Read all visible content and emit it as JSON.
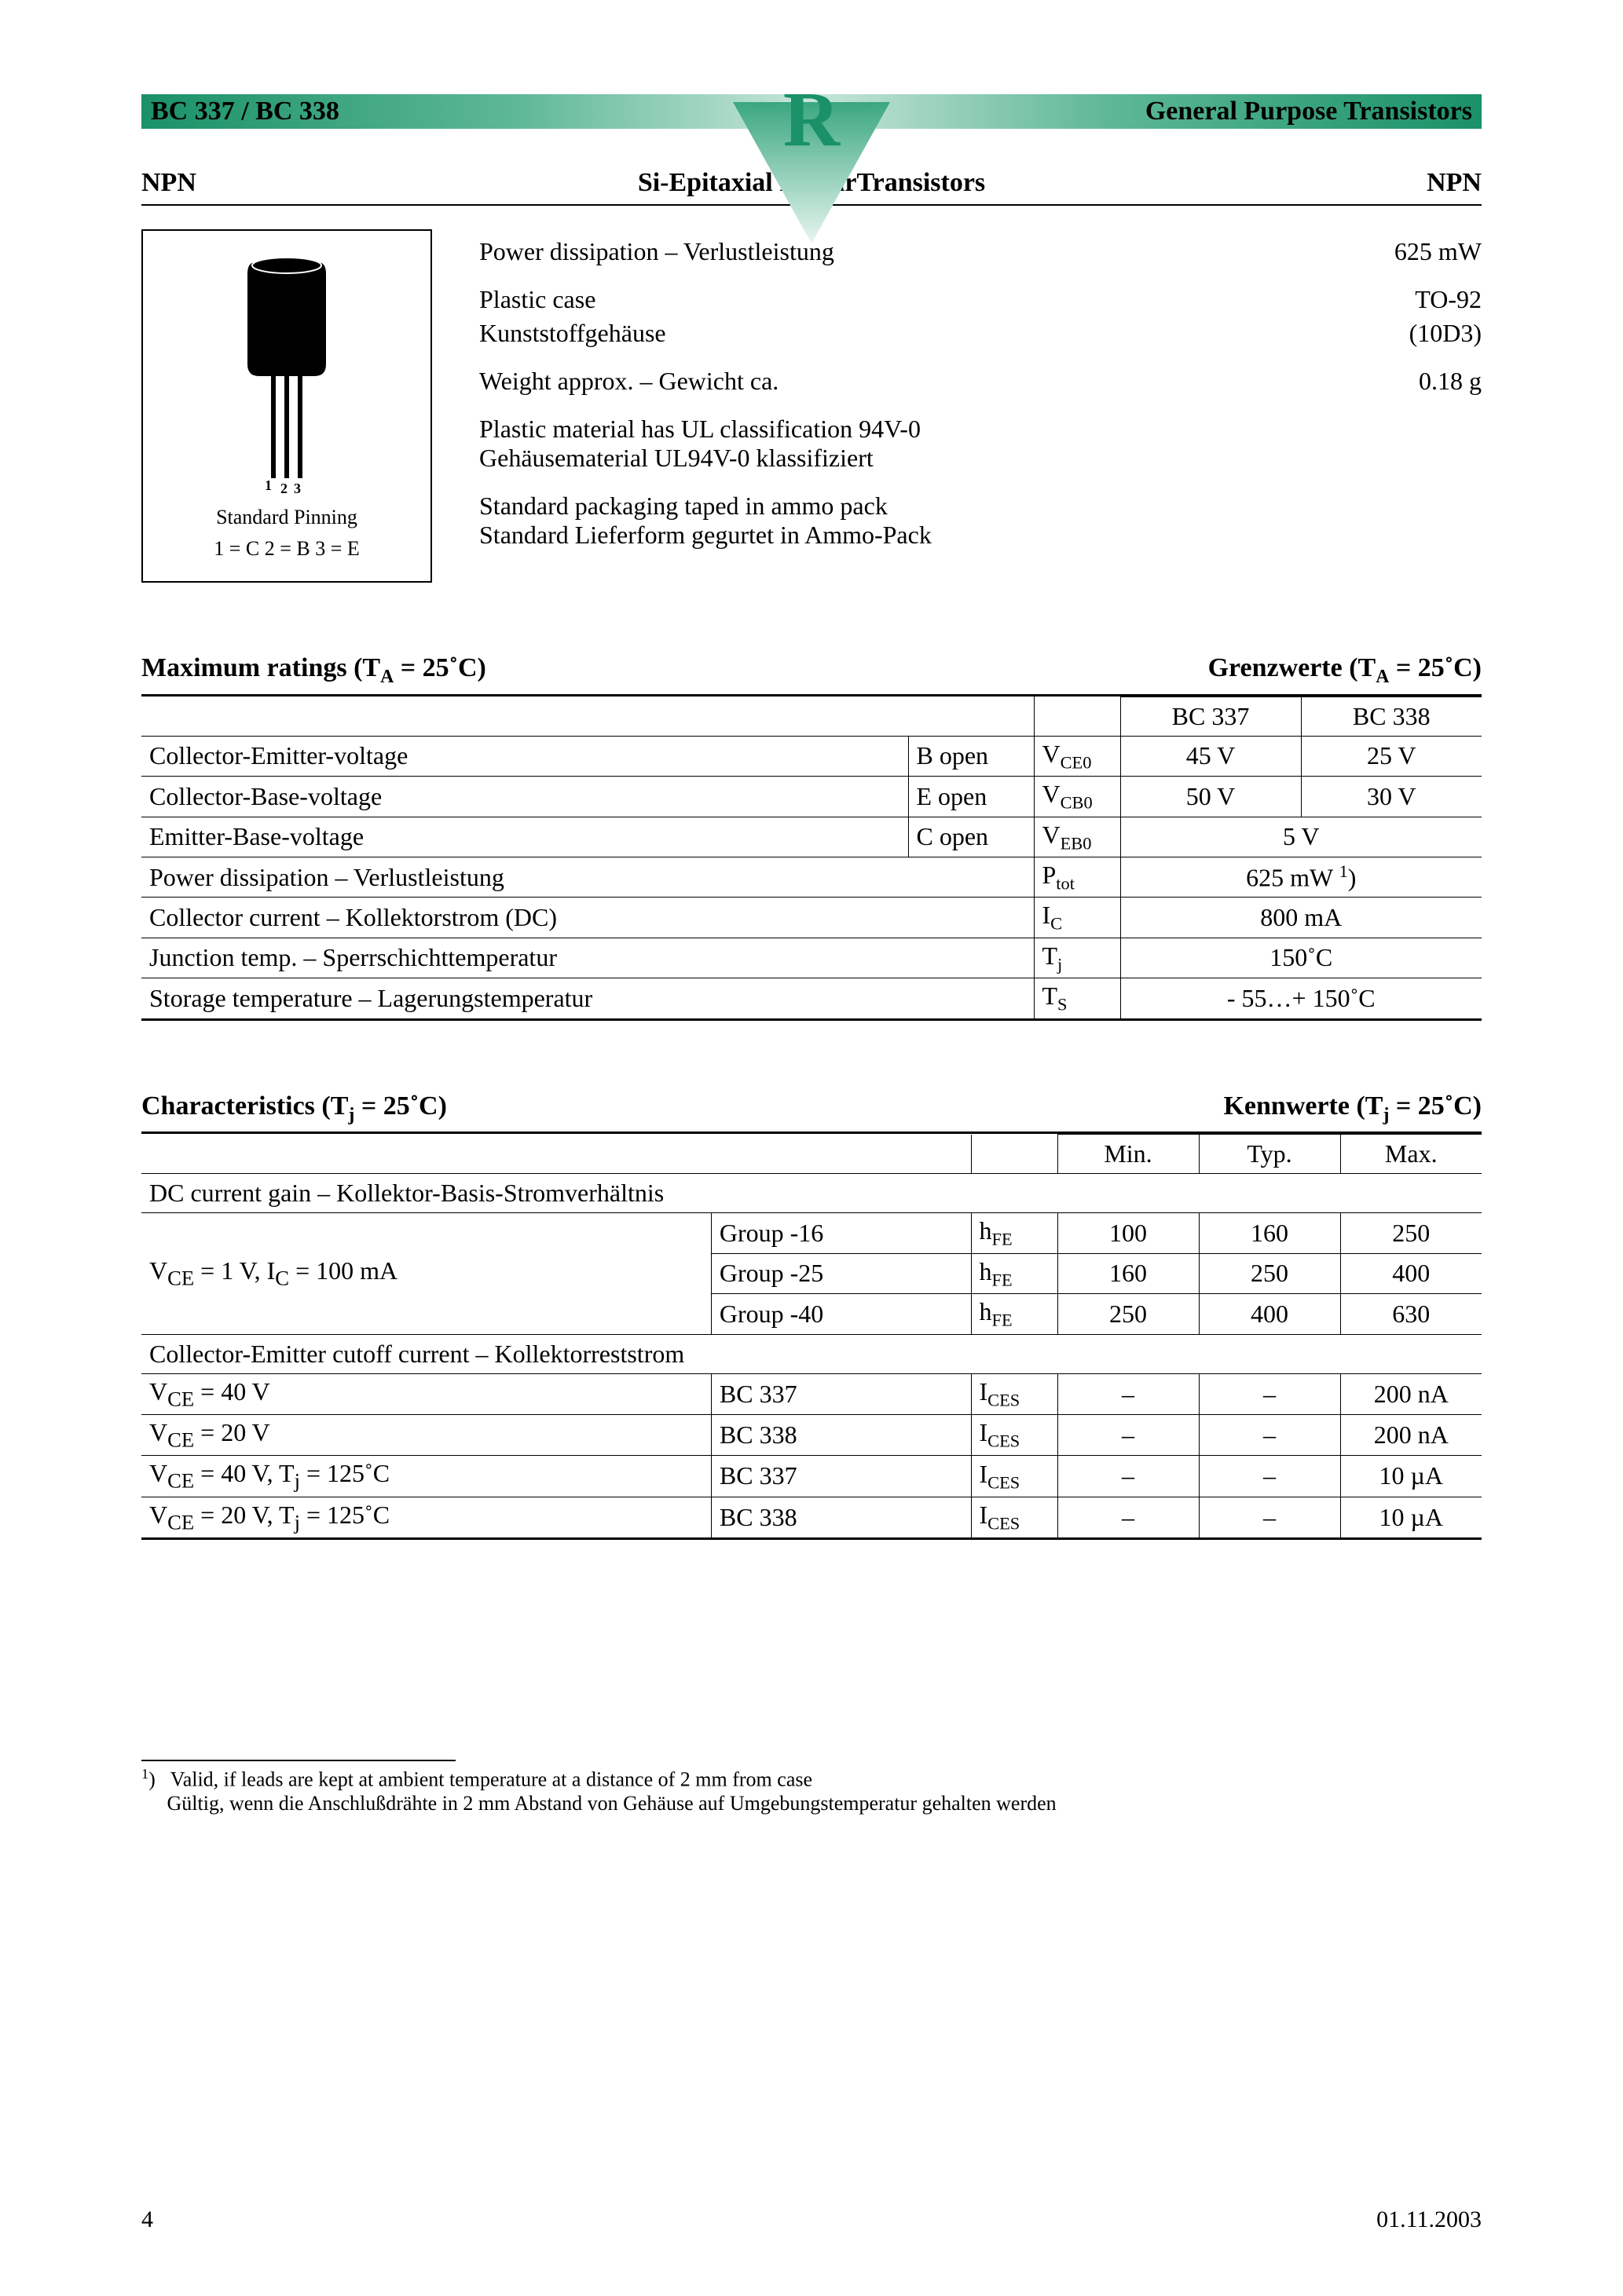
{
  "header": {
    "part_left": "BC 337 / BC 338",
    "part_right": "General Purpose Transistors",
    "logo_letter": "R",
    "logo_color": "#1a9168",
    "triangle_gradient_top": "#3aa77f",
    "triangle_gradient_bottom": "#d8efe6"
  },
  "subhead": {
    "left": "NPN",
    "center": "Si-Epitaxial PlanarTransistors",
    "right": "NPN"
  },
  "package": {
    "caption1": "Standard Pinning",
    "caption2": "1 = C   2 = B   3 = E",
    "pin_labels": [
      "1",
      "2",
      "3"
    ]
  },
  "specs": {
    "pd_label": "Power dissipation – Verlustleistung",
    "pd_val": "625 mW",
    "case_en": "Plastic case",
    "case_val": "TO-92",
    "case_de": "Kunststoffgehäuse",
    "case_code": "(10D3)",
    "weight_label": "Weight approx. – Gewicht ca.",
    "weight_val": "0.18 g",
    "ul_en": "Plastic material has UL classification 94V-0",
    "ul_de": "Gehäusematerial UL94V-0 klassifiziert",
    "pack_en": "Standard packaging taped in ammo pack",
    "pack_de": "Standard Lieferform gegurtet in Ammo-Pack"
  },
  "max_ratings": {
    "title_left": "Maximum ratings (T",
    "title_left_sub": "A",
    "title_left_end": " = 25˚C)",
    "title_right": "Grenzwerte (T",
    "title_right_sub": "A",
    "title_right_end": " = 25˚C)",
    "headers": [
      "BC 337",
      "BC 338"
    ],
    "rows": [
      {
        "p": "Collector-Emitter-voltage",
        "c": "B open",
        "s": "V",
        "ss": "CE0",
        "v": [
          "45 V",
          "25 V"
        ]
      },
      {
        "p": "Collector-Base-voltage",
        "c": "E open",
        "s": "V",
        "ss": "CB0",
        "v": [
          "50 V",
          "30 V"
        ]
      },
      {
        "p": "Emitter-Base-voltage",
        "c": "C open",
        "s": "V",
        "ss": "EB0",
        "merged": "5 V"
      },
      {
        "p": "Power dissipation – Verlustleistung",
        "c": "",
        "s": "P",
        "ss": "tot",
        "merged": "625 mW ",
        "note": "1",
        ")": ")"
      },
      {
        "p": "Collector current – Kollektorstrom (DC)",
        "c": "",
        "s": "I",
        "ss": "C",
        "merged": "800 mA"
      },
      {
        "p": "Junction temp. – Sperrschichttemperatur",
        "c": "",
        "s": "T",
        "ss": "j",
        "merged": "150˚C"
      },
      {
        "p": "Storage temperature – Lagerungstemperatur",
        "c": "",
        "s": "T",
        "ss": "S",
        "merged": "- 55…+ 150˚C"
      }
    ]
  },
  "characteristics": {
    "title_left": "Characteristics (T",
    "title_left_sub": "j",
    "title_left_end": " = 25˚C)",
    "title_right": "Kennwerte (T",
    "title_right_sub": "j",
    "title_right_end": " = 25˚C)",
    "headers": [
      "Min.",
      "Typ.",
      "Max."
    ],
    "section1": {
      "head": "DC current gain – Kollektor-Basis-Stromverhältnis",
      "cond_html": "V<sub>CE</sub> = 1 V, I<sub>C</sub> = 100 mA",
      "rows": [
        {
          "g": "Group -16",
          "s": "h",
          "ss": "FE",
          "min": "100",
          "typ": "160",
          "max": "250"
        },
        {
          "g": "Group -25",
          "s": "h",
          "ss": "FE",
          "min": "160",
          "typ": "250",
          "max": "400"
        },
        {
          "g": "Group -40",
          "s": "h",
          "ss": "FE",
          "min": "250",
          "typ": "400",
          "max": "630"
        }
      ]
    },
    "section2": {
      "head": "Collector-Emitter cutoff current – Kollektorreststrom",
      "rows": [
        {
          "cond": "V<sub>CE</sub> = 40 V",
          "dev": "BC 337",
          "s": "I",
          "ss": "CES",
          "min": "–",
          "typ": "–",
          "max": "200 nA"
        },
        {
          "cond": "V<sub>CE</sub> = 20 V",
          "dev": "BC 338",
          "s": "I",
          "ss": "CES",
          "min": "–",
          "typ": "–",
          "max": "200 nA"
        },
        {
          "cond": "V<sub>CE</sub> = 40 V, T<sub>j</sub> = 125˚C",
          "dev": "BC 337",
          "s": "I",
          "ss": "CES",
          "min": "–",
          "typ": "–",
          "max": "10 µA"
        },
        {
          "cond": "V<sub>CE</sub> = 20 V, T<sub>j</sub> = 125˚C",
          "dev": "BC 338",
          "s": "I",
          "ss": "CES",
          "min": "–",
          "typ": "–",
          "max": "10 µA"
        }
      ]
    }
  },
  "footnote": {
    "mark": "1",
    "close": ")",
    "en": "Valid, if leads are kept at ambient temperature at a distance of 2 mm from case",
    "de": "Gültig, wenn die Anschlußdrähte in 2 mm Abstand von Gehäuse auf Umgebungstemperatur gehalten werden"
  },
  "footer": {
    "page": "4",
    "date": "01.11.2003"
  }
}
